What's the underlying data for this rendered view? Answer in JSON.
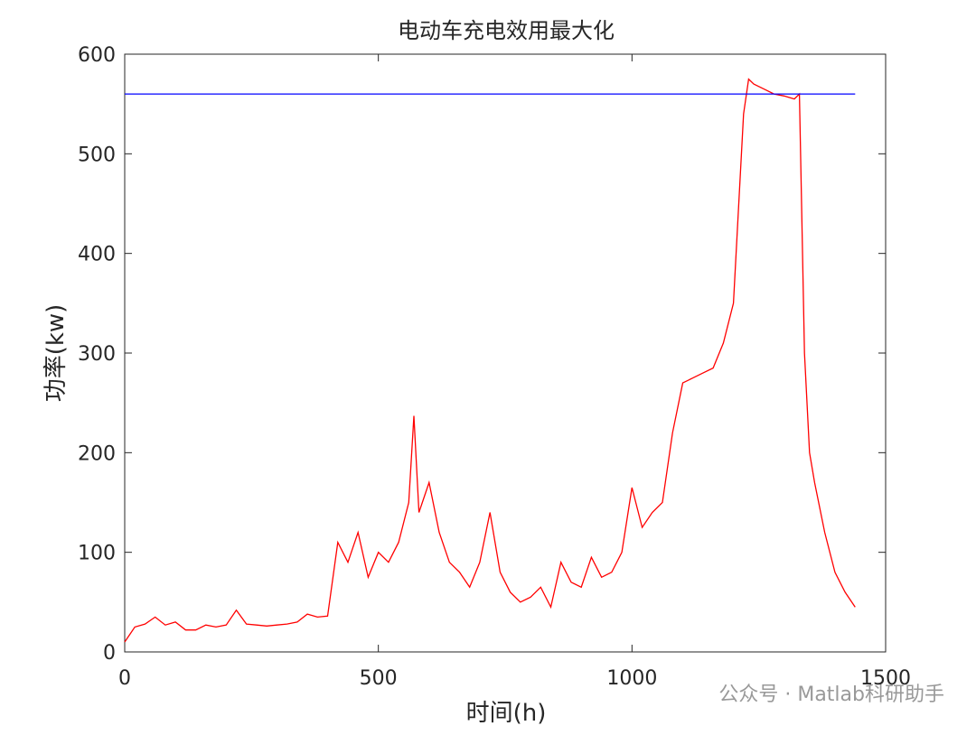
{
  "chart_data": {
    "type": "line",
    "title": "电动车充电效用最大化",
    "x_label": "时间(h)",
    "y_label": "功率(kw)",
    "xlim": [
      0,
      1500
    ],
    "ylim": [
      0,
      600
    ],
    "xticks": [
      0,
      500,
      1000,
      1500
    ],
    "yticks": [
      0,
      100,
      200,
      300,
      400,
      500,
      600
    ],
    "grid": false,
    "series": [
      {
        "color": "#ff0000",
        "x": [
          0,
          20,
          40,
          60,
          80,
          100,
          120,
          140,
          160,
          180,
          200,
          220,
          240,
          260,
          280,
          300,
          320,
          340,
          360,
          380,
          400,
          420,
          440,
          460,
          480,
          500,
          520,
          540,
          560,
          570,
          580,
          600,
          620,
          640,
          660,
          680,
          700,
          720,
          740,
          760,
          780,
          800,
          820,
          840,
          860,
          880,
          900,
          920,
          940,
          960,
          980,
          1000,
          1020,
          1040,
          1060,
          1080,
          1100,
          1120,
          1140,
          1160,
          1180,
          1200,
          1220,
          1230,
          1240,
          1260,
          1280,
          1300,
          1320,
          1330,
          1340,
          1350,
          1360,
          1380,
          1400,
          1420,
          1440
        ],
        "values": [
          10,
          25,
          28,
          35,
          27,
          30,
          22,
          22,
          27,
          25,
          27,
          42,
          28,
          27,
          26,
          27,
          28,
          30,
          38,
          35,
          36,
          110,
          90,
          120,
          75,
          100,
          90,
          110,
          150,
          237,
          140,
          170,
          120,
          90,
          80,
          65,
          90,
          140,
          80,
          60,
          50,
          55,
          65,
          45,
          90,
          70,
          65,
          95,
          75,
          80,
          100,
          165,
          125,
          140,
          150,
          220,
          270,
          275,
          280,
          285,
          310,
          350,
          540,
          575,
          570,
          565,
          560,
          558,
          555,
          560,
          300,
          200,
          170,
          120,
          80,
          60,
          45
        ]
      },
      {
        "color": "#0000ff",
        "x": [
          0,
          1440
        ],
        "values": [
          560,
          560
        ]
      }
    ],
    "watermark": "公众号 · Matlab科研助手"
  }
}
